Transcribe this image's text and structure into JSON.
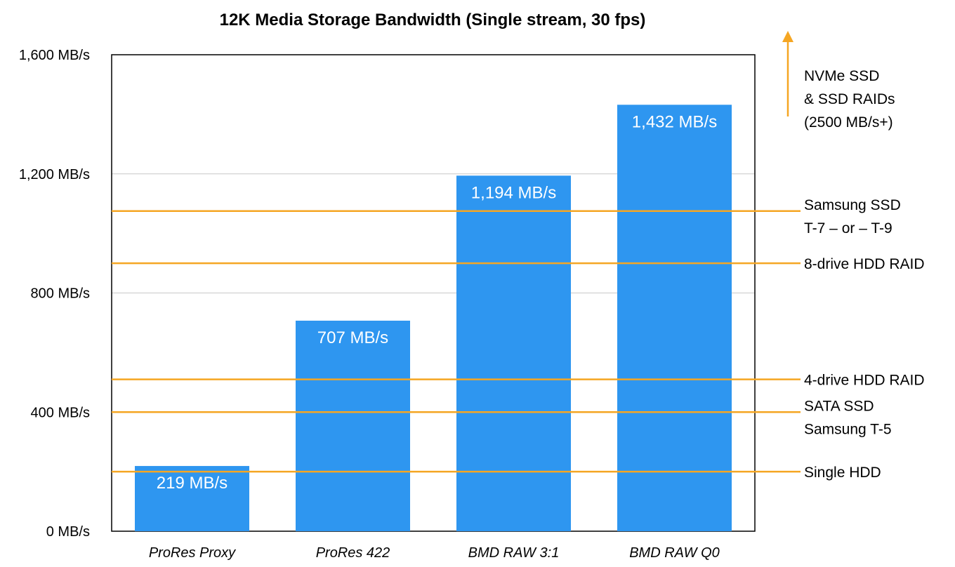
{
  "chart_data": {
    "type": "bar",
    "title": "12K Media Storage Bandwidth (Single stream, 30 fps)",
    "categories": [
      "ProRes Proxy",
      "ProRes 422",
      "BMD RAW 3:1",
      "BMD RAW Q0"
    ],
    "values": [
      219,
      707,
      1194,
      1432
    ],
    "value_labels": [
      "219 MB/s",
      "707 MB/s",
      "1,194 MB/s",
      "1,432 MB/s"
    ],
    "ylim": [
      0,
      1600
    ],
    "yticks": [
      {
        "value": 0,
        "label": "0 MB/s"
      },
      {
        "value": 400,
        "label": "400 MB/s"
      },
      {
        "value": 800,
        "label": "800 MB/s"
      },
      {
        "value": 1200,
        "label": "1,200 MB/s"
      },
      {
        "value": 1600,
        "label": "1,600 MB/s"
      }
    ],
    "grid": true,
    "bar_color": "#2e96f0",
    "reference_color": "#f5a623",
    "reference_lines": [
      {
        "value": 200,
        "lines": [
          "Single HDD"
        ]
      },
      {
        "value": 400,
        "lines": [
          "SATA SSD",
          "Samsung T-5"
        ]
      },
      {
        "value": 510,
        "lines": [
          "4-drive HDD RAID"
        ]
      },
      {
        "value": 900,
        "lines": [
          "8-drive HDD RAID"
        ]
      },
      {
        "value": 1075,
        "lines": [
          "Samsung SSD",
          "T-7 – or – T-9"
        ]
      }
    ],
    "arrow_annotation": {
      "lines": [
        "NVMe SSD",
        "& SSD RAIDs",
        "(2500 MB/s+)"
      ]
    }
  }
}
